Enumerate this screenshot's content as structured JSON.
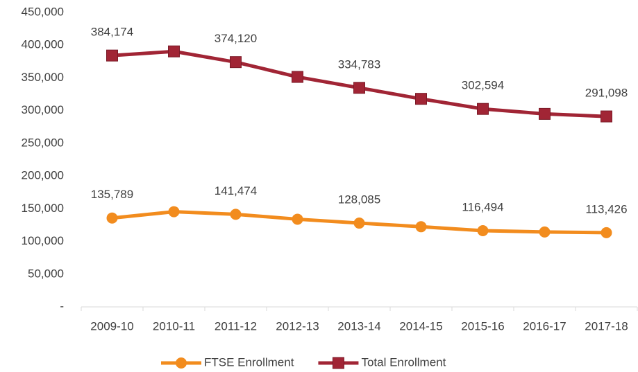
{
  "chart_data": {
    "type": "line",
    "categories": [
      "2009-10",
      "2010-11",
      "2011-12",
      "2012-13",
      "2013-14",
      "2014-15",
      "2015-16",
      "2016-17",
      "2017-18"
    ],
    "series": [
      {
        "name": "FTSE Enrollment",
        "color": "#f28c1e",
        "marker": "circle",
        "values": [
          135789,
          145500,
          141474,
          134000,
          128085,
          122500,
          116494,
          114500,
          113426
        ],
        "value_labels": [
          "135,789",
          null,
          "141,474",
          null,
          "128,085",
          null,
          "116,494",
          null,
          "113,426"
        ]
      },
      {
        "name": "Total Enrollment",
        "color": "#a12535",
        "marker": "square",
        "values": [
          384174,
          390500,
          374120,
          351500,
          334783,
          318000,
          302594,
          295000,
          291098
        ],
        "value_labels": [
          "384,174",
          null,
          "374,120",
          null,
          "334,783",
          null,
          "302,594",
          null,
          "291,098"
        ]
      }
    ],
    "ylim": [
      0,
      450000
    ],
    "yticks": [
      {
        "value": 0,
        "label": "-"
      },
      {
        "value": 50000,
        "label": "50,000"
      },
      {
        "value": 100000,
        "label": "100,000"
      },
      {
        "value": 150000,
        "label": "150,000"
      },
      {
        "value": 200000,
        "label": "200,000"
      },
      {
        "value": 250000,
        "label": "250,000"
      },
      {
        "value": 300000,
        "label": "300,000"
      },
      {
        "value": 350000,
        "label": "350,000"
      },
      {
        "value": 400000,
        "label": "400,000"
      },
      {
        "value": 450000,
        "label": "450,000"
      }
    ],
    "grid": false,
    "legend": "bottom"
  }
}
